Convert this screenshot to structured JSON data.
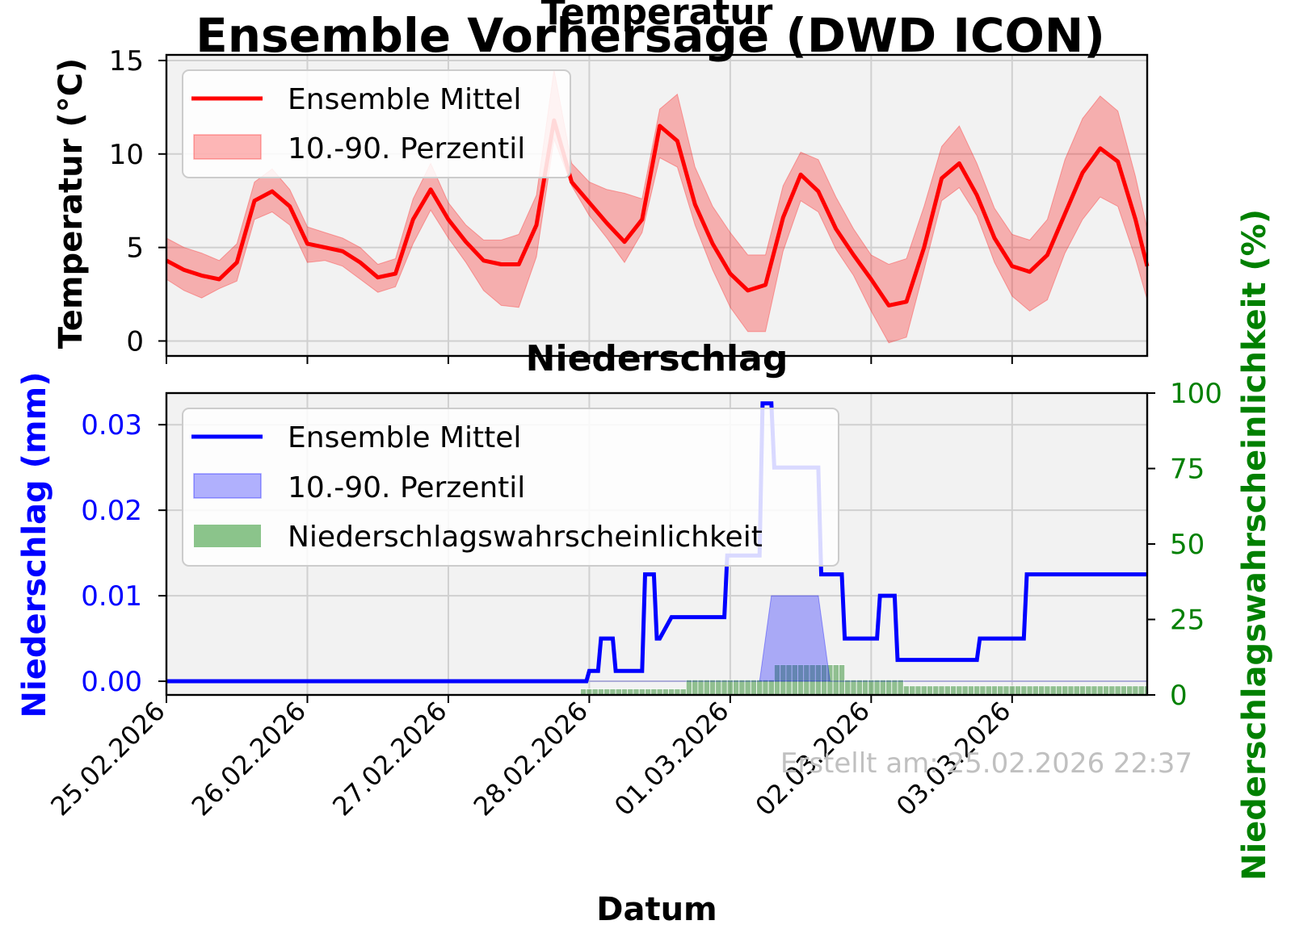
{
  "figure": {
    "suptitle": "Ensemble Vorhersage (DWD ICON)",
    "footer": "Erstellt am: 25.02.2026 22:37",
    "xlabel": "Datum",
    "x_tick_labels": [
      "25.02.2026",
      "26.02.2026",
      "27.02.2026",
      "28.02.2026",
      "01.03.2026",
      "02.03.2026",
      "03.03.2026"
    ]
  },
  "chart_data": [
    {
      "type": "line",
      "title": "Temperatur",
      "ylabel": "Temperatur (°C)",
      "xlim": [
        "2026-02-25 00:00",
        "2026-03-03 23:00"
      ],
      "ylim": [
        -0.8,
        15.3
      ],
      "y_ticks": [
        0,
        5,
        10,
        15
      ],
      "grid": true,
      "legend_position": "upper left",
      "colors": {
        "mean": "#ff0000",
        "band": "#f4a6a6"
      },
      "x_hours": [
        0,
        3,
        6,
        9,
        12,
        15,
        18,
        21,
        24,
        27,
        30,
        33,
        36,
        39,
        42,
        45,
        48,
        51,
        54,
        57,
        60,
        63,
        66,
        69,
        72,
        75,
        78,
        81,
        84,
        87,
        90,
        93,
        96,
        99,
        102,
        105,
        108,
        111,
        114,
        117,
        120,
        123,
        126,
        129,
        132,
        135,
        138,
        141,
        144,
        147,
        150,
        153,
        156,
        159,
        162,
        165,
        167
      ],
      "series": [
        {
          "name": "Ensemble Mittel",
          "kind": "line",
          "y": [
            4.3,
            3.8,
            3.5,
            3.3,
            4.2,
            7.5,
            8.0,
            7.2,
            5.2,
            5.0,
            4.8,
            4.2,
            3.4,
            3.6,
            6.5,
            8.1,
            6.5,
            5.3,
            4.3,
            4.1,
            4.1,
            6.2,
            11.8,
            8.5,
            7.4,
            6.3,
            5.3,
            6.5,
            11.5,
            10.7,
            7.3,
            5.2,
            3.6,
            2.7,
            3.0,
            6.6,
            8.9,
            8.0,
            6.0,
            4.6,
            3.3,
            1.9,
            2.1,
            5.0,
            8.7,
            9.5,
            7.8,
            5.5,
            4.0,
            3.7,
            4.6,
            6.8,
            9.0,
            10.3,
            9.6,
            6.5,
            4.0
          ]
        },
        {
          "name": "10.-90. Perzentil",
          "kind": "band",
          "lower": [
            3.3,
            2.7,
            2.3,
            2.8,
            3.2,
            6.5,
            6.9,
            6.2,
            4.2,
            4.3,
            4.0,
            3.3,
            2.6,
            2.9,
            5.2,
            7.0,
            5.5,
            4.2,
            2.7,
            1.9,
            1.8,
            4.5,
            10.8,
            8.3,
            6.7,
            5.5,
            4.2,
            5.8,
            9.8,
            9.3,
            6.2,
            3.8,
            1.8,
            0.5,
            0.5,
            4.8,
            7.5,
            6.9,
            4.9,
            3.5,
            1.6,
            -0.1,
            0.2,
            3.8,
            7.5,
            8.2,
            6.7,
            4.2,
            2.4,
            1.6,
            2.2,
            4.7,
            6.5,
            7.7,
            7.2,
            4.4,
            2.2
          ],
          "upper": [
            5.5,
            5.0,
            4.7,
            4.3,
            5.2,
            8.5,
            9.2,
            8.1,
            6.1,
            5.8,
            5.5,
            5.0,
            4.1,
            4.4,
            7.6,
            9.5,
            7.4,
            6.2,
            5.4,
            5.4,
            5.7,
            7.8,
            14.5,
            9.5,
            8.5,
            8.1,
            7.9,
            7.6,
            12.4,
            13.2,
            9.3,
            7.2,
            5.8,
            4.6,
            4.6,
            8.3,
            10.1,
            9.7,
            7.7,
            6.0,
            4.6,
            4.1,
            4.4,
            7.2,
            10.4,
            11.5,
            9.5,
            7.1,
            5.7,
            5.4,
            6.5,
            9.7,
            11.9,
            13.1,
            12.3,
            8.8,
            6.0
          ]
        }
      ]
    },
    {
      "type": "line",
      "title": "Niederschlag",
      "ylabel": "Niederschlag (mm)",
      "ylabel_right": "Niederschlagswahrscheinlichkeit (%)",
      "xlim": [
        "2026-02-25 00:00",
        "2026-03-03 23:00"
      ],
      "ylim": [
        -0.0016,
        0.0337
      ],
      "y_ticks": [
        0.0,
        0.01,
        0.02,
        0.03
      ],
      "ylim_right": [
        0,
        100
      ],
      "y_ticks_right": [
        0,
        25,
        50,
        75,
        100
      ],
      "grid": true,
      "legend_position": "upper left",
      "colors": {
        "mean": "#0000ff",
        "band": "#aaaaf0",
        "prob": "#8bc48b",
        "left_axis": "#0000ff",
        "right_axis": "#008000"
      },
      "series": [
        {
          "name": "Ensemble Mittel",
          "kind": "line",
          "x_hours": [
            0,
            71.5,
            72,
            73.5,
            74,
            76,
            76.5,
            81,
            81.5,
            83,
            83.5,
            84,
            86,
            86.5,
            87,
            88,
            88.5,
            95,
            95.5,
            101,
            101.5,
            103,
            103.5,
            111,
            111.5,
            115,
            115.5,
            121,
            121.5,
            124,
            124.5,
            126,
            126.5,
            128,
            128.5,
            138,
            138.5,
            146,
            146.5,
            167
          ],
          "values": [
            0,
            0,
            0.0012,
            0.0012,
            0.005,
            0.005,
            0.0012,
            0.0012,
            0.0125,
            0.0125,
            0.005,
            0.005,
            0.0075,
            0.0075,
            0.0075,
            0.0075,
            0.0075,
            0.0075,
            0.0147,
            0.0147,
            0.0325,
            0.0325,
            0.025,
            0.025,
            0.0125,
            0.0125,
            0.005,
            0.005,
            0.01,
            0.01,
            0.0025,
            0.0025,
            0.0025,
            0.0025,
            0.0025,
            0.0025,
            0.005,
            0.005,
            0.0125,
            0.0125
          ]
        },
        {
          "name": "10.-90. Perzentil",
          "kind": "band",
          "x_hours": [
            0,
            101,
            103,
            111,
            113,
            167
          ],
          "lower": [
            0,
            0,
            0,
            0,
            0,
            0
          ],
          "upper": [
            0,
            0,
            0.01,
            0.01,
            0,
            0
          ]
        },
        {
          "name": "Niederschlagswahrscheinlichkeit",
          "kind": "bar",
          "axis": "right",
          "segments": [
            {
              "start": 70.5,
              "end": 88.5,
              "value": 2
            },
            {
              "start": 88.5,
              "end": 103.5,
              "value": 5
            },
            {
              "start": 103.5,
              "end": 115.5,
              "value": 10
            },
            {
              "start": 115.5,
              "end": 125.5,
              "value": 5
            },
            {
              "start": 125.5,
              "end": 167,
              "value": 3
            }
          ]
        }
      ]
    }
  ]
}
